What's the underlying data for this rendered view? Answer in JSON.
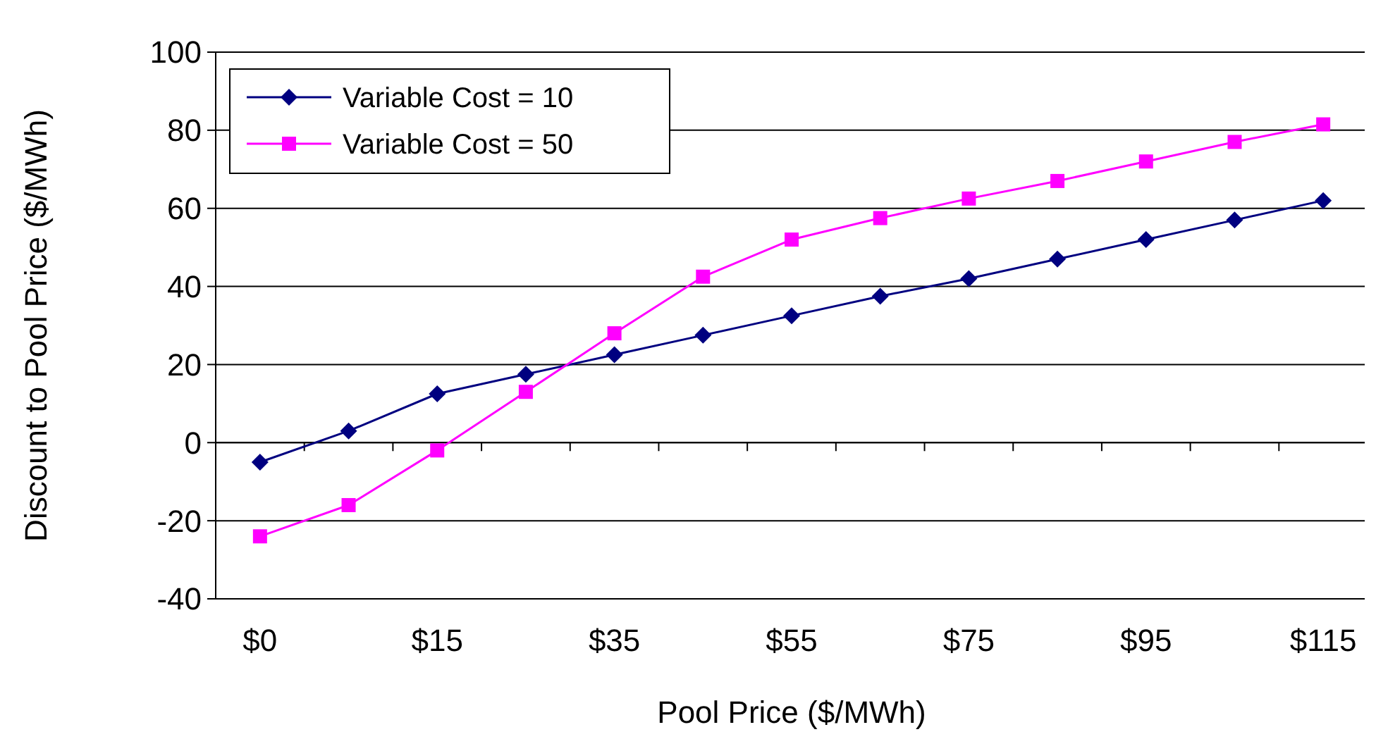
{
  "chart_data": {
    "type": "line",
    "xlabel": "Pool Price ($/MWh)",
    "ylabel": "Discount to Pool Price ($/MWh)",
    "categories": [
      "$0",
      null,
      "$15",
      null,
      "$35",
      null,
      "$55",
      null,
      "$75",
      null,
      "$95",
      null,
      "$115"
    ],
    "series": [
      {
        "name": "Variable Cost = 10",
        "color": "#000080",
        "marker": "diamond",
        "values": [
          -5,
          3,
          12.5,
          17.5,
          22.5,
          27.5,
          32.5,
          37.5,
          42,
          47,
          52,
          57,
          62
        ]
      },
      {
        "name": "Variable Cost = 50",
        "color": "#ff00ff",
        "marker": "square",
        "values": [
          -24,
          -16,
          -2,
          13,
          28,
          42.5,
          52,
          57.5,
          62.5,
          67,
          72,
          77,
          81.5
        ]
      }
    ],
    "ylim": [
      -40,
      100
    ],
    "yticks": [
      -40,
      -20,
      0,
      20,
      40,
      60,
      80,
      100
    ],
    "grid": "y",
    "legend": "top left"
  }
}
